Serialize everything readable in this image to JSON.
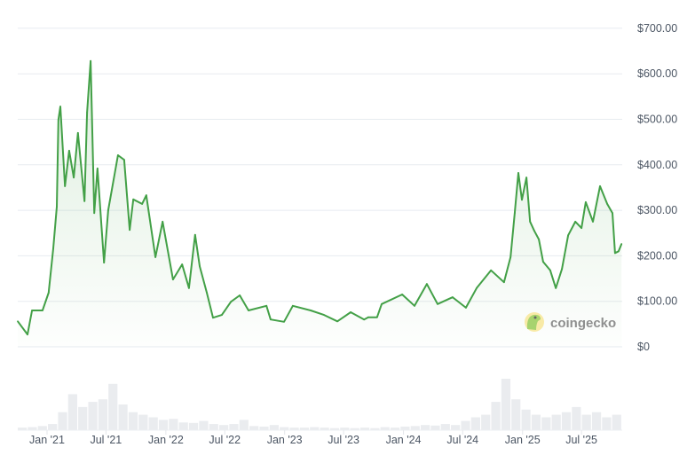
{
  "watermark": "coingecko",
  "colors": {
    "line": "#43a047",
    "fill": "#43a047",
    "volume": "#e5e7eb",
    "grid": "#e7ebf0",
    "text": "#4b5563"
  },
  "chart_data": {
    "type": "line",
    "title": "",
    "xlabel": "",
    "ylabel": "",
    "ylim": [
      0,
      700
    ],
    "grid": true,
    "y_axis_position": "right",
    "y_ticks": [
      0,
      100,
      200,
      300,
      400,
      500,
      600,
      700
    ],
    "y_tick_labels": [
      "$0",
      "$100.00",
      "$200.00",
      "$300.00",
      "$400.00",
      "$500.00",
      "$600.00",
      "$700.00"
    ],
    "x_ticks": [
      "2021-01-01",
      "2021-07-01",
      "2022-01-01",
      "2022-07-01",
      "2023-01-01",
      "2023-07-01",
      "2024-01-01",
      "2024-07-01",
      "2025-01-01",
      "2025-07-01"
    ],
    "x_tick_labels": [
      "Jan '21",
      "Jul '21",
      "Jan '22",
      "Jul '22",
      "Jan '23",
      "Jul '23",
      "Jan '24",
      "Jul '24",
      "Jan '25",
      "Jul '25"
    ],
    "series": [
      {
        "x": [
          "2020-10-03",
          "2020-11-02",
          "2020-11-16",
          "2020-12-18",
          "2021-01-06",
          "2021-01-20",
          "2021-01-31",
          "2021-02-05",
          "2021-02-11",
          "2021-02-25",
          "2021-03-10",
          "2021-03-24",
          "2021-04-06",
          "2021-04-26",
          "2021-05-04",
          "2021-05-15",
          "2021-05-26",
          "2021-06-05",
          "2021-06-25",
          "2021-07-08",
          "2021-08-07",
          "2021-08-26",
          "2021-09-12",
          "2021-09-23",
          "2021-10-20",
          "2021-11-02",
          "2021-11-30",
          "2021-12-22",
          "2022-01-23",
          "2022-02-20",
          "2022-03-13",
          "2022-04-01",
          "2022-04-15",
          "2022-05-07",
          "2022-05-26",
          "2022-06-22",
          "2022-07-20",
          "2022-08-16",
          "2022-09-12",
          "2022-11-06",
          "2022-11-19",
          "2022-12-30",
          "2023-01-26",
          "2023-03-22",
          "2023-05-02",
          "2023-06-12",
          "2023-07-23",
          "2023-09-02",
          "2023-09-15",
          "2023-10-12",
          "2023-10-26",
          "2023-12-28",
          "2024-02-04",
          "2024-03-13",
          "2024-04-15",
          "2024-05-31",
          "2024-07-11",
          "2024-08-13",
          "2024-09-26",
          "2024-11-05",
          "2024-11-25",
          "2024-12-08",
          "2024-12-19",
          "2024-12-30",
          "2025-01-13",
          "2025-01-24",
          "2025-02-06",
          "2025-02-20",
          "2025-03-05",
          "2025-03-27",
          "2025-04-13",
          "2025-05-02",
          "2025-05-21",
          "2025-06-12",
          "2025-07-01",
          "2025-07-14",
          "2025-08-05",
          "2025-08-27",
          "2025-09-18",
          "2025-10-04",
          "2025-10-12",
          "2025-10-23",
          "2025-11-01"
        ],
        "y": [
          56,
          27,
          80,
          80,
          119,
          216,
          308,
          499,
          528,
          353,
          431,
          372,
          470,
          320,
          515,
          628,
          294,
          392,
          185,
          300,
          421,
          411,
          257,
          324,
          314,
          333,
          197,
          275,
          148,
          181,
          129,
          246,
          177,
          119,
          64,
          70,
          99,
          113,
          80,
          90,
          60,
          55,
          90,
          80,
          70,
          56,
          76,
          60,
          65,
          65,
          94,
          115,
          90,
          138,
          94,
          109,
          86,
          129,
          168,
          142,
          197,
          294,
          382,
          323,
          372,
          275,
          255,
          236,
          187,
          168,
          129,
          171,
          245,
          275,
          261,
          318,
          275,
          353,
          314,
          294,
          206,
          210,
          226
        ]
      }
    ],
    "volume_relative": [
      0.05,
      0.06,
      0.08,
      0.12,
      0.35,
      0.7,
      0.45,
      0.55,
      0.6,
      0.9,
      0.5,
      0.35,
      0.3,
      0.25,
      0.2,
      0.22,
      0.15,
      0.14,
      0.18,
      0.12,
      0.1,
      0.12,
      0.2,
      0.08,
      0.07,
      0.1,
      0.06,
      0.05,
      0.05,
      0.06,
      0.05,
      0.04,
      0.05,
      0.04,
      0.05,
      0.04,
      0.06,
      0.05,
      0.07,
      0.08,
      0.1,
      0.09,
      0.12,
      0.1,
      0.18,
      0.25,
      0.3,
      0.55,
      1.0,
      0.6,
      0.4,
      0.3,
      0.25,
      0.3,
      0.35,
      0.45,
      0.3,
      0.35,
      0.25,
      0.3
    ]
  }
}
